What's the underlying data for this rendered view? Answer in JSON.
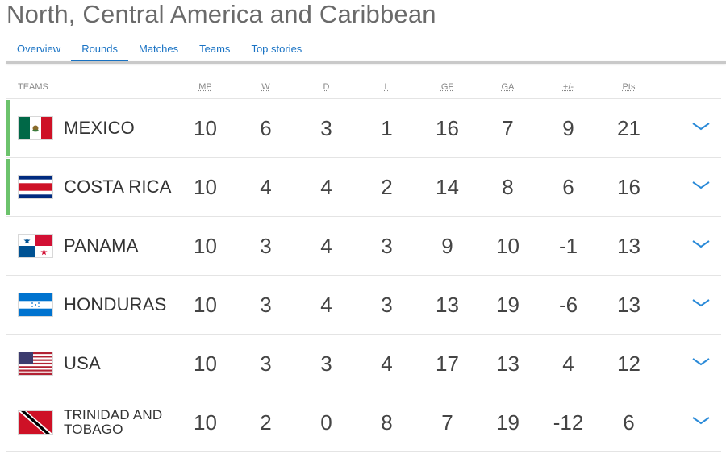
{
  "page": {
    "title": "North, Central America and Caribbean"
  },
  "tabs": [
    {
      "label": "Overview",
      "active": false
    },
    {
      "label": "Rounds",
      "active": true
    },
    {
      "label": "Matches",
      "active": false
    },
    {
      "label": "Teams",
      "active": false
    },
    {
      "label": "Top stories",
      "active": false
    }
  ],
  "table": {
    "headers": {
      "teams": "TEAMS",
      "mp": "MP",
      "w": "W",
      "d": "D",
      "l": "L",
      "gf": "GF",
      "ga": "GA",
      "gd": "+/-",
      "pts": "Pts"
    },
    "rows": [
      {
        "team": "MEXICO",
        "flag": "mexico-flag-icon",
        "mp": "10",
        "w": "6",
        "d": "3",
        "l": "1",
        "gf": "16",
        "ga": "7",
        "gd": "9",
        "pts": "21"
      },
      {
        "team": "COSTA RICA",
        "flag": "costa-rica-flag-icon",
        "mp": "10",
        "w": "4",
        "d": "4",
        "l": "2",
        "gf": "14",
        "ga": "8",
        "gd": "6",
        "pts": "16"
      },
      {
        "team": "PANAMA",
        "flag": "panama-flag-icon",
        "mp": "10",
        "w": "3",
        "d": "4",
        "l": "3",
        "gf": "9",
        "ga": "10",
        "gd": "-1",
        "pts": "13"
      },
      {
        "team": "HONDURAS",
        "flag": "honduras-flag-icon",
        "mp": "10",
        "w": "3",
        "d": "4",
        "l": "3",
        "gf": "13",
        "ga": "19",
        "gd": "-6",
        "pts": "13"
      },
      {
        "team": "USA",
        "flag": "usa-flag-icon",
        "mp": "10",
        "w": "3",
        "d": "3",
        "l": "4",
        "gf": "17",
        "ga": "13",
        "gd": "4",
        "pts": "12"
      },
      {
        "team": "TRINIDAD AND TOBAGO",
        "flag": "trinidad-and-tobago-flag-icon",
        "mp": "10",
        "w": "2",
        "d": "0",
        "l": "8",
        "gf": "7",
        "ga": "19",
        "gd": "-12",
        "pts": "6"
      }
    ]
  },
  "colors": {
    "accent": "#1a73c4",
    "qualified": "#6cc36c"
  }
}
